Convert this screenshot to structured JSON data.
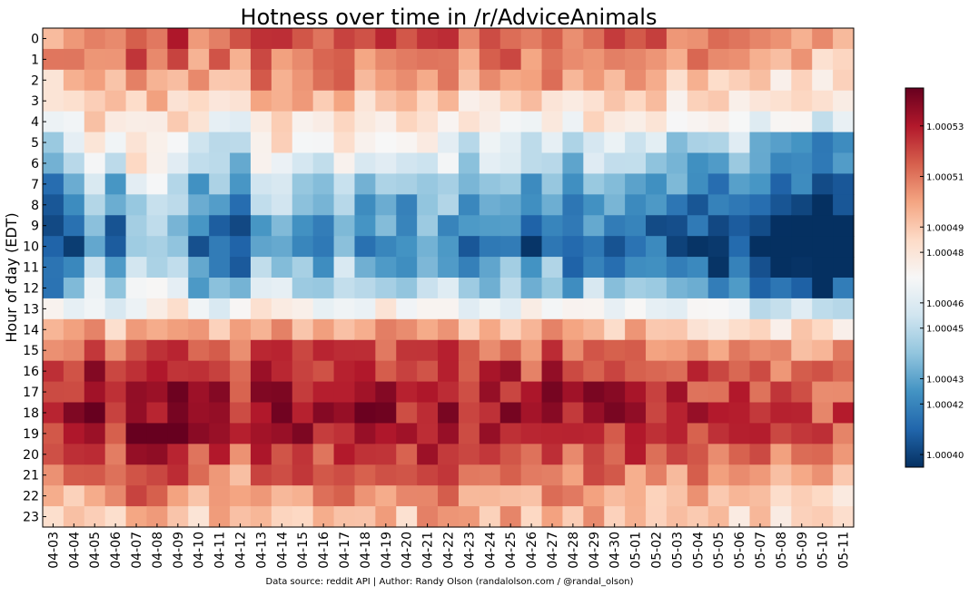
{
  "chart_data": {
    "type": "heatmap",
    "title": "Hotness over time in /r/AdviceAnimals",
    "ylabel": "Hour of day (EDT)",
    "xlabel": "",
    "x_categories": [
      "04-03",
      "04-04",
      "04-05",
      "04-06",
      "04-07",
      "04-08",
      "04-09",
      "04-10",
      "04-11",
      "04-12",
      "04-13",
      "04-14",
      "04-15",
      "04-16",
      "04-17",
      "04-18",
      "04-19",
      "04-20",
      "04-21",
      "04-22",
      "04-23",
      "04-24",
      "04-25",
      "04-26",
      "04-27",
      "04-28",
      "04-29",
      "04-30",
      "05-01",
      "05-02",
      "05-03",
      "05-04",
      "05-05",
      "05-06",
      "05-07",
      "05-08",
      "05-09",
      "05-10",
      "05-11"
    ],
    "y_categories": [
      "0",
      "1",
      "2",
      "3",
      "4",
      "5",
      "6",
      "7",
      "8",
      "9",
      "10",
      "11",
      "12",
      "13",
      "14",
      "15",
      "16",
      "17",
      "18",
      "19",
      "20",
      "21",
      "22",
      "23"
    ],
    "color_scale": {
      "colormap": "RdBu_r",
      "vmin": 1.000395,
      "vmax": 1.000545,
      "ticks": [
        "1.00040",
        "1.00042",
        "1.00043",
        "1.00045",
        "1.00046",
        "1.00048",
        "1.00049",
        "1.00051",
        "1.00053"
      ],
      "low_color": "#053061",
      "high_color": "#67001f"
    },
    "row_profile": [
      0.8,
      0.76,
      0.7,
      0.62,
      0.55,
      0.48,
      0.4,
      0.33,
      0.26,
      0.2,
      0.18,
      0.24,
      0.34,
      0.5,
      0.68,
      0.8,
      0.86,
      0.9,
      0.92,
      0.9,
      0.84,
      0.78,
      0.72,
      0.66
    ],
    "column_offsets": [
      -0.1,
      -0.05,
      0.05,
      -0.04,
      0.08,
      0.06,
      0.05,
      -0.04,
      -0.03,
      -0.08,
      0.05,
      0.04,
      0.03,
      0.01,
      0.07,
      0.0,
      0.01,
      -0.03,
      0.03,
      0.02,
      -0.03,
      -0.01,
      0.02,
      -0.06,
      0.02,
      -0.06,
      0.0,
      -0.03,
      -0.03,
      -0.05,
      -0.08,
      -0.08,
      -0.1,
      -0.07,
      -0.12,
      -0.16,
      -0.14,
      -0.18,
      -0.16
    ],
    "grid": false,
    "colorbar": "right"
  },
  "credit": "Data source: reddit API | Author: Randy Olson (randalolson.com / @randal_olson)"
}
